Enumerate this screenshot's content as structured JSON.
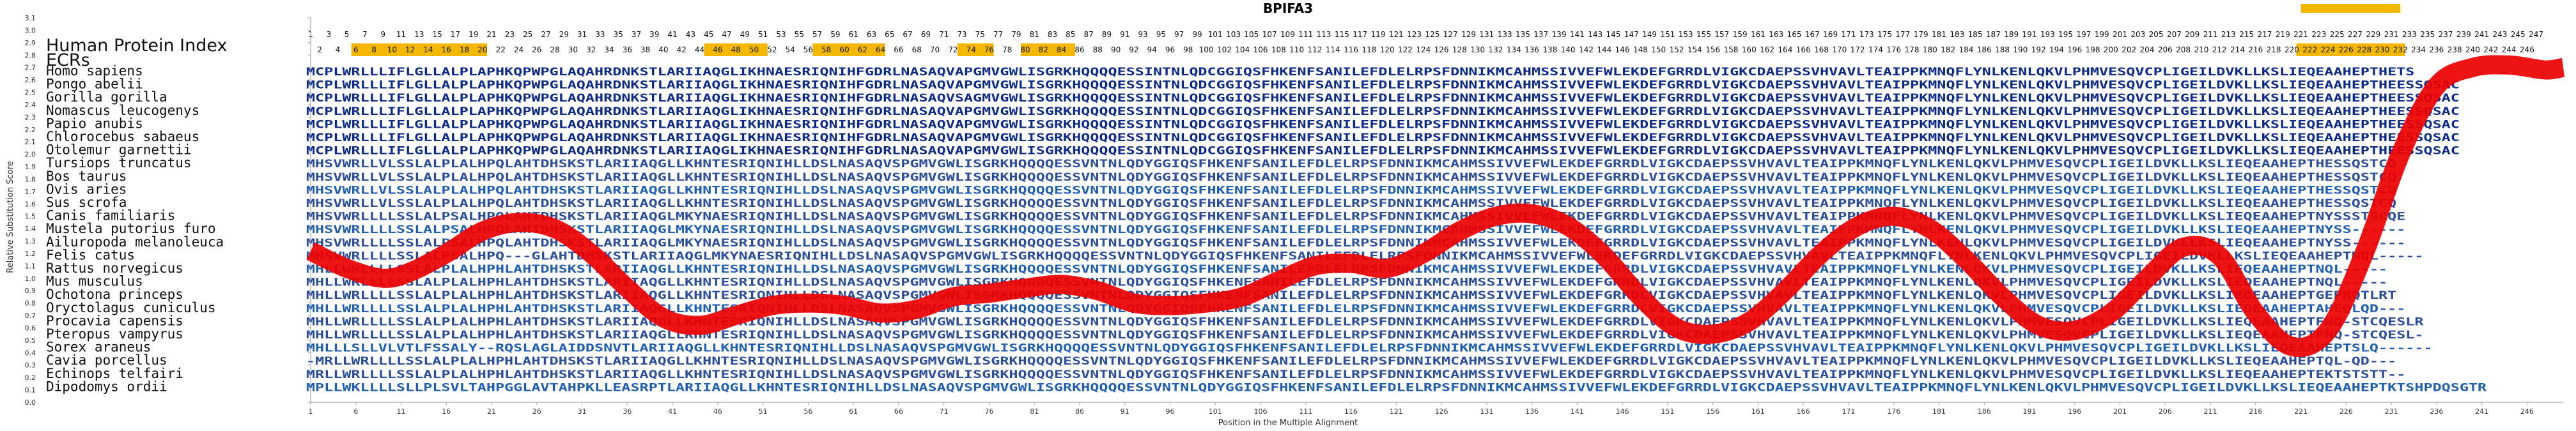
{
  "chart_data": {
    "type": "line",
    "title": "BPIFA3",
    "index_title": "Human Protein Index",
    "ecr_label": "ECRs",
    "xlabel": "Position in the Multiple Alignment",
    "ylabel": "Relative Substitution Score",
    "ylim": [
      0,
      3.1
    ],
    "xlim": [
      1,
      250
    ],
    "grid": false,
    "y_ticks": [
      "0.0",
      "0.1",
      "0.2",
      "0.3",
      "0.4",
      "0.5",
      "0.6",
      "0.7",
      "0.8",
      "0.9",
      "1.0",
      "1.1",
      "1.2",
      "1.3",
      "1.4",
      "1.5",
      "1.6",
      "1.7",
      "1.8",
      "1.9",
      "2.0",
      "2.1",
      "2.2",
      "2.3",
      "2.4",
      "2.5",
      "2.6",
      "2.7",
      "2.8",
      "2.9",
      "3.0",
      "3.1"
    ],
    "x_ticks": [
      1,
      6,
      11,
      16,
      21,
      26,
      31,
      36,
      41,
      46,
      51,
      56,
      61,
      66,
      71,
      76,
      81,
      86,
      91,
      96,
      101,
      106,
      111,
      116,
      121,
      126,
      131,
      136,
      141,
      146,
      151,
      156,
      161,
      166,
      171,
      176,
      181,
      186,
      191,
      196,
      201,
      206,
      211,
      216,
      221,
      226,
      231,
      236,
      241,
      246
    ],
    "ecr_segments": [
      [
        6,
        20
      ],
      [
        45,
        51
      ],
      [
        57,
        64
      ],
      [
        73,
        76
      ],
      [
        80,
        85
      ],
      [
        221,
        232
      ]
    ],
    "ecr_color": "#f5b800",
    "line_color": "#ee0000",
    "series": [
      {
        "x": [
          1,
          5,
          9,
          12,
          16,
          20,
          24,
          28,
          32,
          36,
          40,
          44,
          48,
          52,
          56,
          60,
          64,
          68,
          72,
          76,
          80,
          84,
          88,
          92,
          96,
          100,
          104,
          108,
          112,
          116,
          120,
          124,
          128,
          132,
          136,
          140,
          144,
          148,
          152,
          156,
          160,
          164,
          168,
          172,
          176,
          180,
          184,
          188,
          192,
          196,
          200,
          204,
          208,
          212,
          216,
          220,
          224,
          228,
          232,
          236,
          240,
          244,
          248,
          250
        ],
        "y": [
          1.22,
          1.08,
          1.0,
          1.05,
          1.2,
          1.38,
          1.45,
          1.4,
          1.2,
          0.92,
          0.68,
          0.62,
          0.7,
          0.78,
          0.8,
          0.78,
          0.72,
          0.75,
          0.85,
          0.88,
          0.92,
          0.95,
          0.9,
          0.8,
          0.78,
          0.8,
          0.85,
          0.98,
          1.1,
          1.12,
          1.08,
          1.2,
          1.38,
          1.5,
          1.52,
          1.42,
          1.18,
          0.85,
          0.6,
          0.55,
          0.65,
          0.9,
          1.2,
          1.42,
          1.5,
          1.4,
          1.15,
          0.85,
          0.62,
          0.58,
          0.72,
          1.0,
          1.25,
          1.18,
          0.72,
          0.45,
          0.58,
          1.2,
          2.0,
          2.55,
          2.7,
          2.72,
          2.68,
          2.7
        ]
      }
    ],
    "positions_row1": [
      1,
      3,
      5,
      7,
      9,
      11,
      13,
      15,
      17,
      19,
      21,
      23,
      25,
      27,
      29,
      31,
      33,
      35,
      37,
      39,
      41,
      43,
      45,
      47,
      49,
      51,
      53,
      55,
      57,
      59,
      61,
      63,
      65,
      67,
      69,
      71,
      73,
      75,
      77,
      79,
      81,
      83,
      85,
      87,
      89,
      91,
      93,
      95,
      97,
      99,
      101,
      103,
      105,
      107,
      109,
      111,
      113,
      115,
      117,
      119,
      121,
      123,
      125,
      127,
      129,
      131,
      133,
      135,
      137,
      139,
      141,
      143,
      145,
      147,
      149,
      151,
      153,
      155,
      157,
      159,
      161,
      163,
      165,
      167,
      169,
      171,
      173,
      175,
      177,
      179,
      181,
      183,
      185,
      187,
      189,
      191,
      193,
      195,
      197,
      199,
      201,
      203,
      205,
      207,
      209,
      211,
      213,
      215,
      217,
      219,
      221,
      223,
      225,
      227,
      229,
      231,
      233,
      235,
      237,
      239,
      241,
      243,
      245,
      247
    ],
    "positions_row2": [
      2,
      4,
      6,
      8,
      10,
      12,
      14,
      16,
      18,
      20,
      22,
      24,
      26,
      28,
      30,
      32,
      34,
      36,
      38,
      40,
      42,
      44,
      46,
      48,
      50,
      52,
      54,
      56,
      58,
      60,
      62,
      64,
      66,
      68,
      70,
      72,
      74,
      76,
      78,
      80,
      82,
      84,
      86,
      88,
      90,
      92,
      94,
      96,
      98,
      100,
      102,
      104,
      106,
      108,
      110,
      112,
      114,
      116,
      118,
      120,
      122,
      124,
      126,
      128,
      130,
      132,
      134,
      136,
      138,
      140,
      142,
      144,
      146,
      148,
      150,
      152,
      154,
      156,
      158,
      160,
      162,
      164,
      166,
      168,
      170,
      172,
      174,
      176,
      178,
      180,
      182,
      184,
      186,
      188,
      190,
      192,
      194,
      196,
      198,
      200,
      202,
      204,
      206,
      208,
      210,
      212,
      214,
      216,
      218,
      220,
      222,
      224,
      226,
      228,
      230,
      232,
      234,
      236,
      238,
      240,
      242,
      244,
      246
    ],
    "species": [
      {
        "name": "Homo sapiens",
        "seq": "MCPLWRLLLIFLGLLALPLAPHKQPWPGLAQAHRDNKSTLARIIAQGLIKHNAESRIQNIHFGDRLNASAQVAPGMVGWLISGRKHQQQQESSINTNLQDCGGIQSFHKENFSANILEFDLELRPSFDNNIKMCAHMSSIVVEFWLEKDEFGRRDLVIGKCDAEPSSVHVAVLTEAIPPKMNQFLYNLKENLQKVLPHMVESQVCPLIGEILDVKLLKSLIEQEAAHEPTHETS"
      },
      {
        "name": "Pongo abelii",
        "seq": "MCPLWRLLLIFLGLLALPLAPHKQPWPGLAQAHRDNKSTLARIIAQGLIKHNAESRIQNIHFGDRLNASAQVAPGMVGWLISGRKHQQQQESSINTNLQDCGGIQSFHKENFSANILEFDLELRPSFDNNIKMCAHMSSIVVEFWLEKDEFGRRDLVIGKCDAEPSSVHVAVLTEAIPPKMNQFLYNLKENLQKVLPHMVESQVCPLIGEILDVKLLKSLIEQEAAHEPTHEESSQSAC"
      },
      {
        "name": "Gorilla gorilla",
        "seq": "MCPLWRLLLIFLGLLALPLAPHKQPWPGLAQAHRDNKSTLARIIAQGLIKHNAESRIQNIHFGDRLNASAQVSAGMVGWLISGRKHQQQQESSINTNLQDCGGIQSFHKENFSANILEFDLELRPSFDNNIKMCAHMSSIVVEFWLEKDEFGRRDLVIGKCDAEPSSVHVAVLTEAIPPKMNQFLYNLKENLQKVLPHMVESQVCPLIGEILDVKLLKSLIEQEAAHEPTHEESSQSAC"
      },
      {
        "name": "Nomascus leucogenys",
        "seq": "MCPLWRLLLIFLGLLALPLAPHKQPWPGLAQAHRDNKSTLARIIAQGLIKHNAESRIQNIHFGDRLNASAQVAPGMVGWLISGRKHQQQQESSINTNLQDCGGIQSFHKENFSANILEFDLELRPSFDNNIKMCAHMSSIVVEFWLEKDEFGRRDLVIGKCDAEPSSVHVAVLTEAIPPKMNQFLYNLKENLQKVLPHMVESQVCPLIGEILDVKLLKSLIEQEAAHEPTHEESSQSAC"
      },
      {
        "name": "Papio anubis",
        "seq": "MCPLWRLLLIFLGLLALPLAPHKQPWPGLAQAHRDNKSTLARIIAQGLIKHNAESRIQNIHFGDRLNASAQVAPGMVGWLISGRKHQQQQESSINTNLQDCGGIQSFHKENFSANILEFDLELRPSFDNNIKMCAHMSSIVVEFWLEKDEFGRRDLVIGKCDAEPSSVHVAVLTEAIPPKMNQFLYNLKENLQKVLPHMVESQVCPLIGEILDVKLLKSLIEQEAAHEPTHEESSQSAC"
      },
      {
        "name": "Chlorocebus sabaeus",
        "seq": "MCPLWRLLLIFLGLLALPLAPHKQPWPGLAQAHRDNKSTLARIIAQGLIKHNAESRIQNIHFGDRLNASAQVAPGMVGWLISGRKHQQQQESSINTNLQDCGGIQSFHKENFSANILEFDLELRPSFDNNIKMCAHMSSIVVEFWLEKDEFGRRDLVIGKCDAEPSSVHVAVLTEAIPPKMNQFLYNLKENLQKVLPHMVESQVCPLIGEILDVKLLKSLIEQEAAHEPTHEESSQSAC"
      },
      {
        "name": "Otolemur garnettii",
        "seq": "MCPLWRLLLIFLGLLALPLAPHKQPWPGLAQAHRDNKSTLARIIAQGLIKHNAESRIQNIHFGDRLNASAQVAPGMVGWLISGRKHQQQQESSINTNLQDCGGIQSFHKENFSANILEFDLELRPSFDNNIKMCAHMSSIVVEFWLEKDEFGRRDLVIGKCDAEPSSVHVAVLTEAIPPKMNQFLYNLKENLQKVLPHMVESQVCPLIGEILDVKLLKSLIEQEAAHEPTHEESSQSAC"
      },
      {
        "name": "Tursiops truncatus",
        "seq": "MHSVWRLLVLSSLALPLALHPQLAHTDHSKSTLARIIAQGLLKHNTESRIQNIHLLDSLNASAQVSPGMVGWLISGRKHQQQQESSVNTNLQDYGGIQSFHKENFSANILEFDLELRPSFDNNIKMCAHMSSIVVEFWLEKDEFGRRDLVIGKCDAEPSSVHVAVLTEAIPPKMNQFLYNLKENLQKVLPHMVESQVCPLIGEILDVKLLKSLIEQEAAHEPTHESSQSTCQ"
      },
      {
        "name": "Bos taurus",
        "seq": "MHSVWRLLVLSSLALPLALHPQLAHTDHSKSTLARIIAQGLLKHNTESRIQNIHLLDSLNASAQVSPGMVGWLISGRKHQQQQESSVNTNLQDYGGIQSFHKENFSANILEFDLELRPSFDNNIKMCAHMSSIVVEFWLEKDEFGRRDLVIGKCDAEPSSVHVAVLTEAIPPKMNQFLYNLKENLQKVLPHMVESQVCPLIGEILDVKLLKSLIEQEAAHEPTHESSQSTCQ"
      },
      {
        "name": "Ovis aries",
        "seq": "MHSVWRLLVLSSLALPLALHPQLAHTDHSKSTLARIIAQGLLKHNTESRIQNIHLLDSLNASAQVSPGMVGWLISGRKHQQQQESSVNTNLQDYGGIQSFHKENFSANILEFDLELRPSFDNNIKMCAHMSSIVVEFWLEKDEFGRRDLVIGKCDAEPSSVHVAVLTEAIPPKMNQFLYNLKENLQKVLPHMVESQVCPLIGEILDVKLLKSLIEQEAAHEPTHESSQSTCQ"
      },
      {
        "name": "Sus scrofa",
        "seq": "MHSVWRLLVLSSLALPLALHPQLAHTDHSKSTLARIIAQGLLKHNTESRIQNIHLLDSLNASAQVSPGMVGWLISGRKHQQQQESSVNTNLQDYGGIQSFHKENFSANILEFDLELRPSFDNNIKMCAHMSSIVVEFWLEKDEFGRRDLVIGKCDAEPSSVHVAVLTEAIPPKMNQFLYNLKENLQKVLPHMVESQVCPLIGEILDVKLLKSLIEQEAAHEPTHESSQSTCQ"
      },
      {
        "name": "Canis familiaris",
        "seq": "MHSVWRLLLLSSLALPSALHPQLAHTDHSKSTLARIIAQGLMKYNAESRIQNIHLLDSLNASAQVSPGMVGWLISGRKHQQQQESSVNTNLQDYGGIQSFHKENFSANILEFDLELRPSFDNNIKMCAHMSSIVVEFWLEKDEFGRRDLVIGKCDAEPSSVHVAVLTEAIPPKMNQFLYNLKENLQKVLPHMVESQVCPLIGEILDVKLLKSLIEQEAAHEPTNYSSSTSCQE"
      },
      {
        "name": "Mustela putorius furo",
        "seq": "MHSVWRLLLLSSLALPSALHPQLAHTDHSKSTLARIIAQGLMKYNAESRIQNIHLLDSLNASAQVSPGMVGWLISGRKHQQQQESSVNTNLQDYGGIQSFHKENFSANILEFDLELRPSFDNNIKMCAHMSSIVVEFWLEKDEFGRRDLVIGKCDAEPSSVHVAVLTEAIPPKMNQFLYNLKENLQKVLPHMVESQVCPLIGEILDVKLLKSLIEQEAAHEPTNYSS------"
      },
      {
        "name": "Ailuropoda melanoleuca",
        "seq": "MHSVWRLLLLSSLALPSALHPQLAHTDHSKSTLARIIAQGLMKYNAESRIQNIHLLDSLNASAQVSPGMVGWLISGRKHQQQQESSVNTNLQDYGGIQSFHKENFSANILEFDLELRPSFDNNIKMCAHMSSIVVEFWLEKDEFGRRDLVIGKCDAEPSSVHVAVLTEAIPPKMNQFLYNLKENLQKVLPHMVESQVCPLIGEILDVKLLKSLIEQEAAHEPTNYSS------"
      },
      {
        "name": "Felis catus",
        "seq": "MHSVWRLLLLSSLALPSALHPQ---GLAHTDHSKSTLARIIAQGLMKYNAESRIQNIHLLDSLNASAQVSPGMVGWLISGRKHQQQQESSVNTNLQDYGGIQSFHKENFSANILEFDLELRPSFDNNIKMCAHMSSIVVEFWLEKDEFGRRDLVIGKCDAEPSSVHVAVLTEAIPPKMNQFLYNLKENLQKVLPHMVESQVCPLIGEILDVKLLKSLIEQEAAHEPTNQL-----"
      },
      {
        "name": "Rattus norvegicus",
        "seq": "MHLLWRLLLLSSLALPLALHPHLAHTDHSKSTLARIIAQGLLKHNTESRIQNIHLLDSLNASAQVSPGMVGWLISGRKHQQQQESSVNTNLQDYGGIQSFHKENFSANILEFDLELRPSFDNNIKMCAHMSSIVVEFWLEKDEFGRRDLVIGKCDAEPSSVHVAVLTEAIPPKMNQFLYNLKENLQKVLPHMVESQVCPLIGEILDVKLLKSLIEQEAAHEPTNQL-----"
      },
      {
        "name": "Mus musculus",
        "seq": "MHLLWRLLLLSSLALPLALHPHLAHTDHSKSTLARIIAQGLLKHNTESRIQNIHLLDSLNASAQVSPGMVGWLISGRKHQQQQESSVNTNLQDYGGIQSFHKENFSANILEFDLELRPSFDNNIKMCAHMSSIVVEFWLEKDEFGRRDLVIGKCDAEPSSVHVAVLTEAIPPKMNQFLYNLKENLQKVLPHMVESQVCPLIGEILDVKLLKSLIEQEAAHEPTNQL-----"
      },
      {
        "name": "Ochotona princeps",
        "seq": "MHLLWRLLLLSSLALPLALHPHLAHTDHSKSTLARIIAQGLLKHNTESRIQNIHLLDSLNASAQVSPGMVGWLISGRKHQQQQESSVNTNLQDYGGIQSFHKENFSANILEFDLELRPSFDNNIKMCAHMSSIVVEFWLEKDEFGRRDLVIGKCDAEPSSVHVAVLTEAIPPKMNQFLYNLKENLQKVLPHMVESQVCPLIGEILDVKLLKSLIEQEAAHEPTGEPRQTLRT"
      },
      {
        "name": "Oryctolagus cuniculus",
        "seq": "MHLLWRLLLLSSLALPLALHPHLAHTDHSKSTLARIIAQGLLKHNTESRIQNIHLLDSLNASAQVSPGMVGWLISGRKHQQQQESSVNTNLQDYGGIQSFHKENFSANILEFDLELRPSFDNNIKMCAHMSSIVVEFWLEKDEFGRRDLVIGKCDAEPSSVHVAVLTEAIPPKMNQFLYNLKENLQKVLPHMVESQVCPLIGEILDVKLLKSLIEQEAAHEPTAHEQLQD---"
      },
      {
        "name": "Procavia capensis",
        "seq": "MHLLWRLLLLSSLALPLALHPHLAHTDHSKSTLARIIAQGLLKHNTESRIQNIHLLDSLNASAQVSPGMVGWLISGRKHQQQQESSVNTNLQDYGGIQSFHKENFSANILEFDLELRPSFDNNIKMCAHMSSIVVEFWLEKDEFGRRDLVIGKCDAEPSSVHVAVLTEAIPPKMNQFLYNLKENLQKVLPHMVESQVCPLIGEILDVKLLKSLIEQEAAHEPTFNQ-STCQESLR"
      },
      {
        "name": "Pteropus vampyrus",
        "seq": "MHLLWRLLLLSSLALPLALHPHLAHTDHSKSTLARIIAQGLLKHNTESRIQNIHLLDSLNASAQVSPGMVGWLISGRKHQQQQESSVNTNLQDYGGIQSFHKENFSANILEFDLELRPSFDNNIKMCAHMSSIVVEFWLEKDEFGRRDLVIGKCDAEPSSVHVAVLTEAIPPKMNQFLYNLKENLQKVLPHMVESQVCPLIGEILDVKLLKSLIEQEAAHEPTFNQ-STCQESL-"
      },
      {
        "name": "Sorex araneus",
        "seq": "MHLLLSLLVLVTLFSSALY--RQSLAGLAIDDSNVTLARIIAQGLLKHNTESRIQNIHLLDSLNASAQVSPGMVGWLISGRKHQQQQESSVNTNLQDYGGIQSFHKENFSANILEFDLELRPSFDNNIKMCAHMSSIVVEFWLEKDEFGRRDLVIGKCDAEPSSVHVAVLTEAIPPKMNQFLYNLKENLQKVLPHMVESQVCPLIGEILDVKLLKSLIEQEAAHEPTSLQ------"
      },
      {
        "name": "Cavia porcellus",
        "seq": "-MRLLWRLLLLSSLALPLALHPHLAHTDHSKSTLARIIAQGLLKHNTESRIQNIHLLDSLNASAQVSPGMVGWLISGRKHQQQQESSVNTNLQDYGGIQSFHKENFSANILEFDLELRPSFDNNIKMCAHMSSIVVEFWLEKDEFGRRDLVIGKCDAEPSSVHVAVLTEAIPPKMNQFLYNLKENLQKVLPHMVESQVCPLIGEILDVKLLKSLIEQEAAHEPTQL-QD---"
      },
      {
        "name": "Echinops telfairi",
        "seq": "MRLLWRLLLLSSLALPLALHPHLAHTDHSKSTLARIIAQGLLKHNTESRIQNIHLLDSLNASAQVSPGMVGWLISGRKHQQQQESSVNTNLQDYGGIQSFHKENFSANILEFDLELRPSFDNNIKMCAHMSSIVVEFWLEKDEFGRRDLVIGKCDAEPSSVHVAVLTEAIPPKMNQFLYNLKENLQKVLPHMVESQVCPLIGEILDVKLLKSLIEQEAAHEPTEKTSTSTT--"
      },
      {
        "name": "Dipodomys ordii",
        "seq": "MPLLWKLLLLSLLPLSVLTAHPGGLAVTAHPKLLEASRPTLARIIAQGLLKHNTESRIQNIHLLDSLNASAQVSPGMVGWLISGRKHQQQQESSVNTNLQDYGGIQSFHKENFSANILEFDLELRPSFDNNIKMCAHMSSIVVEFWLEKDEFGRRDLVIGKCDAEPSSVHVAVLTEAIPPKMNQFLYNLKENLQKVLPHMVESQVCPLIGEILDVKLLKSLIEQEAAHEPTKTSHPDQSGTR"
      }
    ]
  }
}
